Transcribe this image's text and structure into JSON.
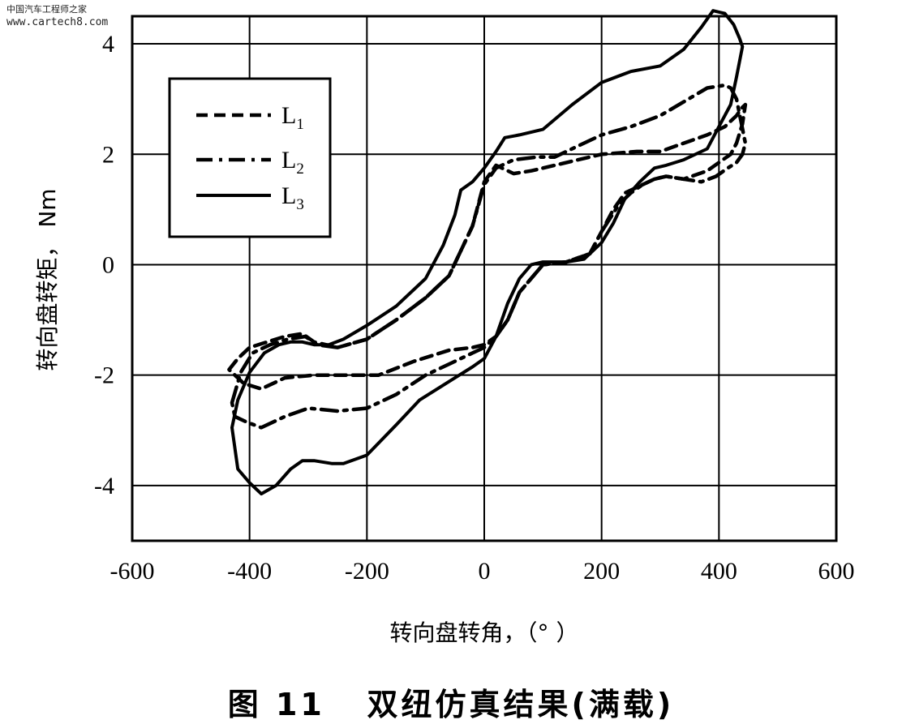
{
  "watermark": {
    "line1": "中国汽车工程师之家",
    "line2": "www.cartech8.com"
  },
  "caption": "图 11   双纽仿真结果(满载)",
  "chart_data": {
    "type": "line",
    "xlabel": "转向盘转角，（°  ）",
    "ylabel": "转向盘转矩，  Nm",
    "xlim": [
      -600,
      600
    ],
    "ylim": [
      -5,
      4.5
    ],
    "xticks": [
      -600,
      -400,
      -200,
      0,
      200,
      400,
      600
    ],
    "yticks": [
      -4,
      -2,
      0,
      2,
      4
    ],
    "grid": true,
    "legend_position": "top-left",
    "series": [
      {
        "name": "L1",
        "label": "L",
        "subscript": "1",
        "style": "dashed",
        "x": [
          -435,
          -420,
          -400,
          -370,
          -340,
          -310,
          -290,
          -250,
          -200,
          -150,
          -100,
          -60,
          -20,
          0,
          20,
          50,
          80,
          120,
          160,
          200,
          260,
          300,
          340,
          380,
          410,
          430,
          440,
          445,
          440,
          430,
          420,
          400,
          380,
          340,
          310,
          290,
          260,
          240,
          220,
          200,
          180,
          140,
          100,
          60,
          40,
          20,
          0,
          -20,
          -60,
          -120,
          -180,
          -240,
          -290,
          -340,
          -380,
          -410,
          -430,
          -435
        ],
        "y": [
          -1.9,
          -1.7,
          -1.5,
          -1.4,
          -1.3,
          -1.25,
          -1.4,
          -1.5,
          -1.35,
          -1.0,
          -0.6,
          -0.2,
          0.7,
          1.5,
          1.8,
          1.65,
          1.7,
          1.8,
          1.9,
          2.0,
          2.05,
          2.05,
          2.2,
          2.35,
          2.5,
          2.7,
          2.85,
          2.9,
          2.55,
          2.2,
          2.0,
          1.85,
          1.7,
          1.55,
          1.6,
          1.55,
          1.4,
          1.3,
          1.0,
          0.6,
          0.2,
          0.05,
          0.0,
          -0.5,
          -1.0,
          -1.3,
          -1.45,
          -1.5,
          -1.55,
          -1.75,
          -2.0,
          -2.0,
          -2.0,
          -2.05,
          -2.25,
          -2.15,
          -1.95,
          -1.9
        ]
      },
      {
        "name": "L2",
        "label": "L",
        "subscript": "2",
        "style": "dashdot",
        "x": [
          -430,
          -415,
          -395,
          -365,
          -335,
          -305,
          -285,
          -250,
          -200,
          -150,
          -100,
          -60,
          -20,
          0,
          20,
          50,
          90,
          120,
          160,
          200,
          250,
          300,
          340,
          380,
          410,
          420,
          430,
          445,
          440,
          430,
          415,
          395,
          370,
          340,
          310,
          290,
          270,
          250,
          230,
          200,
          180,
          140,
          100,
          60,
          40,
          20,
          0,
          -20,
          -60,
          -100,
          -150,
          -200,
          -250,
          -300,
          -340,
          -380,
          -405,
          -425,
          -430
        ],
        "y": [
          -2.5,
          -1.95,
          -1.6,
          -1.45,
          -1.35,
          -1.3,
          -1.45,
          -1.5,
          -1.35,
          -1.0,
          -0.6,
          -0.2,
          0.7,
          1.45,
          1.75,
          1.9,
          1.95,
          1.95,
          2.15,
          2.35,
          2.5,
          2.7,
          2.95,
          3.2,
          3.25,
          3.2,
          3.0,
          2.2,
          2.0,
          1.85,
          1.75,
          1.6,
          1.5,
          1.55,
          1.6,
          1.55,
          1.45,
          1.3,
          1.1,
          0.6,
          0.2,
          0.05,
          0.0,
          -0.5,
          -1.0,
          -1.3,
          -1.5,
          -1.6,
          -1.8,
          -2.0,
          -2.35,
          -2.6,
          -2.65,
          -2.6,
          -2.75,
          -2.95,
          -2.85,
          -2.75,
          -2.5
        ]
      },
      {
        "name": "L3",
        "label": "L",
        "subscript": "3",
        "style": "solid",
        "x": [
          -430,
          -420,
          -400,
          -375,
          -350,
          -330,
          -310,
          -290,
          -265,
          -240,
          -200,
          -150,
          -100,
          -70,
          -50,
          -40,
          -20,
          0,
          20,
          35,
          60,
          100,
          150,
          200,
          250,
          300,
          340,
          370,
          390,
          410,
          425,
          435,
          440,
          430,
          420,
          400,
          380,
          340,
          310,
          290,
          265,
          240,
          220,
          200,
          170,
          140,
          100,
          80,
          60,
          40,
          20,
          0,
          -20,
          -50,
          -80,
          -110,
          -150,
          -200,
          -240,
          -260,
          -290,
          -310,
          -330,
          -355,
          -380,
          -400,
          -420,
          -430
        ],
        "y": [
          -2.95,
          -2.45,
          -1.95,
          -1.6,
          -1.45,
          -1.4,
          -1.4,
          -1.45,
          -1.45,
          -1.35,
          -1.1,
          -0.75,
          -0.25,
          0.35,
          0.9,
          1.35,
          1.5,
          1.75,
          2.05,
          2.3,
          2.35,
          2.45,
          2.9,
          3.3,
          3.5,
          3.6,
          3.9,
          4.3,
          4.6,
          4.55,
          4.35,
          4.1,
          3.95,
          3.4,
          2.9,
          2.5,
          2.1,
          1.9,
          1.8,
          1.75,
          1.5,
          1.2,
          0.75,
          0.4,
          0.1,
          0.05,
          0.05,
          0.0,
          -0.25,
          -0.7,
          -1.3,
          -1.7,
          -1.85,
          -2.05,
          -2.25,
          -2.45,
          -2.9,
          -3.45,
          -3.6,
          -3.6,
          -3.55,
          -3.55,
          -3.7,
          -4.0,
          -4.15,
          -3.95,
          -3.7,
          -2.95
        ]
      }
    ]
  }
}
